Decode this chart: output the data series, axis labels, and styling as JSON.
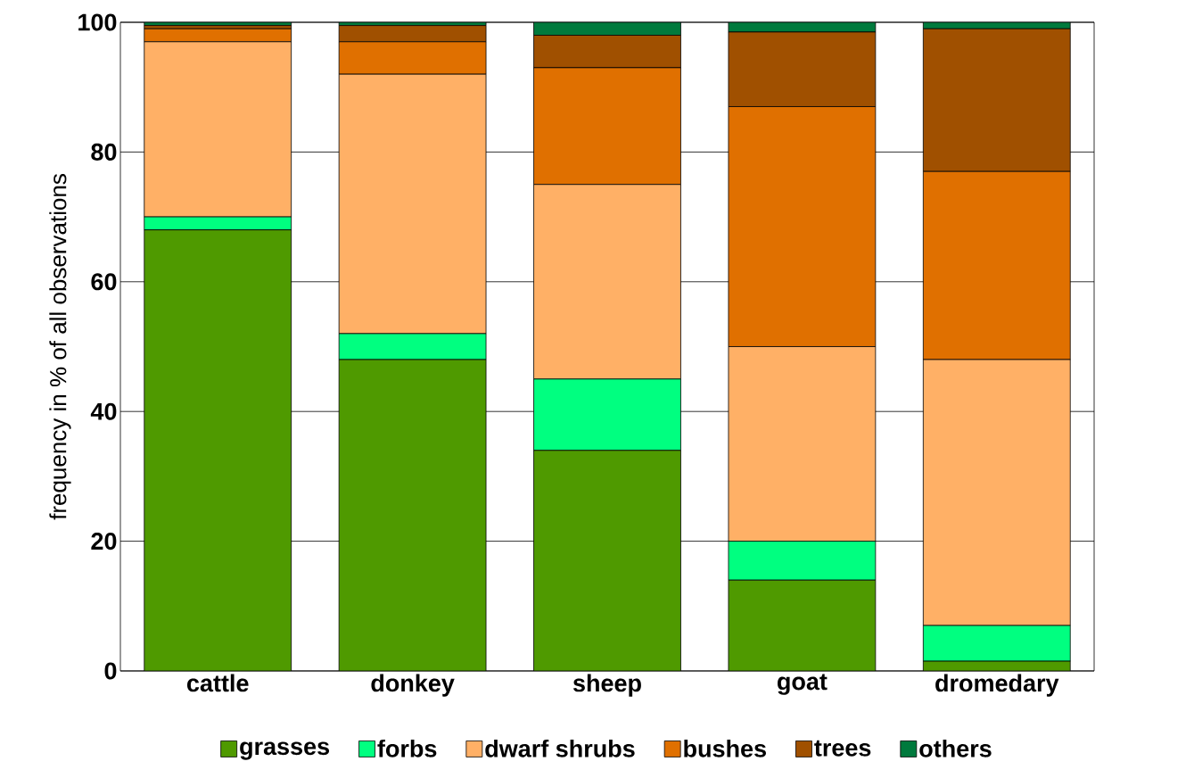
{
  "chart_data": {
    "type": "bar",
    "stacked": true,
    "ylabel": "frequency in % of all observations",
    "categories": [
      "cattle",
      "donkey",
      "sheep",
      "goat",
      "dromedary"
    ],
    "series": [
      {
        "name": "grasses",
        "color": "#4f9a00",
        "values": [
          68,
          48,
          34,
          14,
          1.5
        ]
      },
      {
        "name": "forbs",
        "color": "#00ff80",
        "values": [
          2,
          4,
          11,
          6,
          5.5
        ]
      },
      {
        "name": "dwarf shrubs",
        "color": "#ffb066",
        "values": [
          27,
          40,
          30,
          30,
          41
        ]
      },
      {
        "name": "bushes",
        "color": "#e07000",
        "values": [
          2,
          5,
          18,
          37,
          29
        ]
      },
      {
        "name": "trees",
        "color": "#a05000",
        "values": [
          0.5,
          2.5,
          5,
          11.5,
          22
        ]
      },
      {
        "name": "others",
        "color": "#007a3d",
        "values": [
          0.5,
          0.5,
          2,
          1.5,
          1
        ]
      }
    ],
    "ylim": [
      0,
      100
    ],
    "yticks": [
      0,
      20,
      40,
      60,
      80,
      100
    ],
    "grid": "y",
    "legend": "bottom"
  }
}
